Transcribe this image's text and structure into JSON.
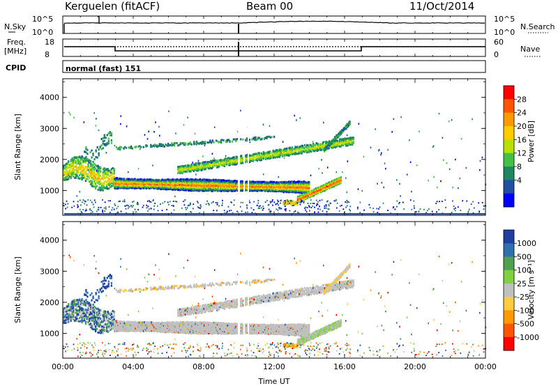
{
  "header": {
    "station": "Kerguelen (fitACF)",
    "beam": "Beam 00",
    "date": "11/Oct/2014"
  },
  "top_panel": {
    "left_label": "N.Sky",
    "right_label": "N.Search",
    "left_ticks": [
      "10^5",
      "10^0"
    ],
    "right_ticks": [
      "10^5",
      "10^0"
    ]
  },
  "freq_panel": {
    "left_label_1": "Freq.",
    "left_label_2": "[MHz]",
    "right_label": "Nave",
    "left_ticks": [
      "18",
      "8"
    ],
    "right_ticks": [
      "60",
      "0"
    ]
  },
  "cpid": {
    "label": "CPID",
    "value": "normal (fast) 151"
  },
  "chart_data": [
    {
      "type": "heatmap",
      "title": "",
      "xlabel": "",
      "ylabel": "Slant Range [km]",
      "ylim": [
        200,
        4600
      ],
      "y_ticks": [
        "1000",
        "2000",
        "3000",
        "4000"
      ],
      "x_ticks": [
        "00:00",
        "04:00",
        "08:00",
        "12:00",
        "16:00",
        "20:00",
        "00:00"
      ],
      "colorbar_label": "Power [dB]",
      "colorbar_ticks": [
        "28",
        "24",
        "20",
        "16",
        "12",
        "8",
        "4"
      ],
      "colorbar_colors": [
        "#ff0000",
        "#ff5500",
        "#ff9900",
        "#ffcc00",
        "#b8e000",
        "#44c044",
        "#208860",
        "#2050a0",
        "#0000ff"
      ]
    },
    {
      "type": "heatmap",
      "title": "",
      "xlabel": "Time UT",
      "ylabel": "Slant Range [km]",
      "ylim": [
        200,
        4600
      ],
      "y_ticks": [
        "1000",
        "2000",
        "3000",
        "4000"
      ],
      "x_ticks": [
        "00:00",
        "04:00",
        "08:00",
        "12:00",
        "16:00",
        "20:00",
        "00:00"
      ],
      "colorbar_label": "Velocity [m s⁻¹]",
      "colorbar_ticks": [
        "1000",
        "500",
        "100",
        "25",
        "-25",
        "-100",
        "-500",
        "-1000"
      ],
      "colorbar_colors": [
        "#2040a0",
        "#3070b0",
        "#50a050",
        "#80d040",
        "#c0c0c0",
        "#ffcc40",
        "#ff9900",
        "#ff5500",
        "#ff0000"
      ]
    }
  ]
}
